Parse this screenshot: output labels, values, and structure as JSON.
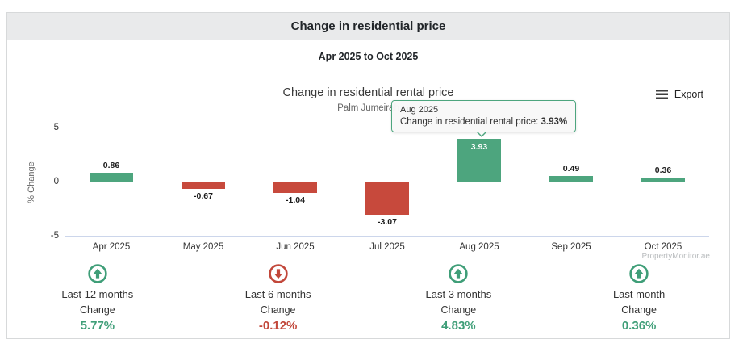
{
  "panel": {
    "title": "Change in residential price",
    "date_range": "Apr 2025 to Oct 2025"
  },
  "chart": {
    "title": "Change in residential rental price",
    "subtitle": "Palm Jumeirah",
    "export_label": "Export",
    "ylabel": "% Change",
    "watermark": "PropertyMonitor.ae"
  },
  "tooltip": {
    "header": "Aug 2025",
    "body_label": "Change in residential rental price:",
    "body_value": "3.93%"
  },
  "chart_data": {
    "type": "bar",
    "title": "Change in residential rental price",
    "subtitle": "Palm Jumeirah",
    "xlabel": "",
    "ylabel": "% Change",
    "categories": [
      "Apr 2025",
      "May 2025",
      "Jun 2025",
      "Jul 2025",
      "Aug 2025",
      "Sep 2025",
      "Oct 2025"
    ],
    "values": [
      0.86,
      -0.67,
      -1.04,
      -3.07,
      3.93,
      0.49,
      0.36
    ],
    "labels": [
      "0.86",
      "-0.67",
      "-1.04",
      "-3.07",
      "3.93",
      "0.49",
      "0.36"
    ],
    "ylim": [
      -5,
      5.9
    ],
    "yticks": [
      5,
      0,
      -5
    ],
    "grid": true,
    "legend": "none",
    "positive_color": "#4da57e",
    "negative_color": "#c7493c",
    "highlighted_index": 4
  },
  "stats": {
    "items": [
      {
        "period": "Last 12 months",
        "label": "Change",
        "value": "5.77%",
        "direction": "up",
        "color": "#3f9e78"
      },
      {
        "period": "Last 6 months",
        "label": "Change",
        "value": "-0.12%",
        "direction": "down",
        "color": "#c2473a"
      },
      {
        "period": "Last 3 months",
        "label": "Change",
        "value": "4.83%",
        "direction": "up",
        "color": "#3f9e78"
      },
      {
        "period": "Last month",
        "label": "Change",
        "value": "0.36%",
        "direction": "up",
        "color": "#3f9e78"
      }
    ]
  }
}
